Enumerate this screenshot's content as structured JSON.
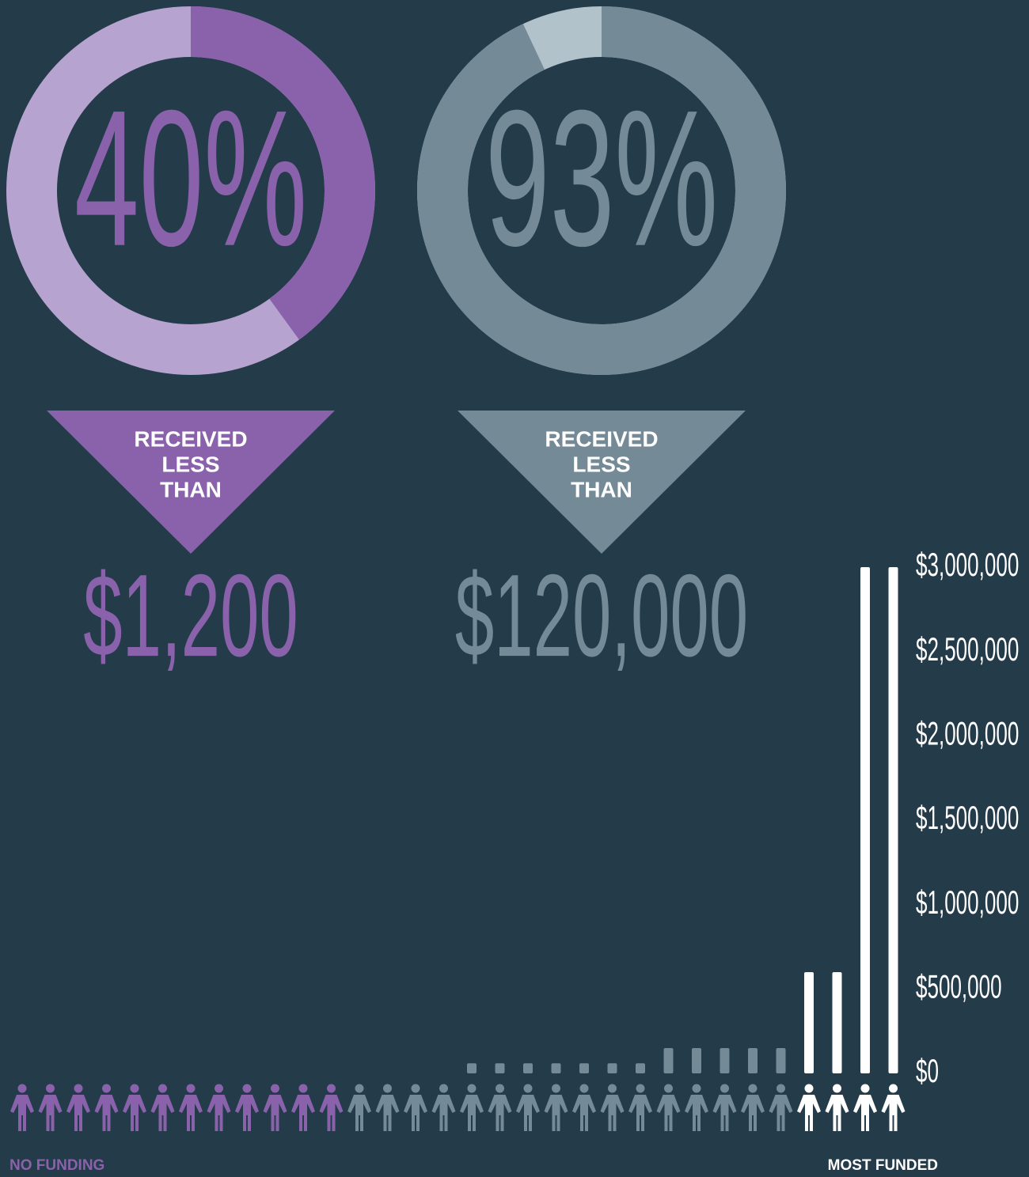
{
  "donuts": [
    {
      "value": 40,
      "value_label": "40%",
      "color": "#8a62ab",
      "track_color": "#b7a3cf",
      "caption": [
        "RECEIVED",
        "LESS",
        "THAN"
      ],
      "amount": "$1,200"
    },
    {
      "value": 93,
      "value_label": "93%",
      "color": "#748a96",
      "track_color": "#b2c2cb",
      "caption": [
        "RECEIVED",
        "LESS",
        "THAN"
      ],
      "amount": "$120,000"
    }
  ],
  "chart_data": {
    "type": "bar",
    "series": [
      {
        "color": "#8a62ab",
        "values": [
          0,
          0,
          0,
          0,
          0,
          0,
          0,
          0,
          0,
          0,
          0,
          0
        ]
      },
      {
        "color": "#748a96",
        "values": [
          0,
          0,
          0,
          0,
          60000,
          60000,
          60000,
          60000,
          60000,
          60000,
          60000,
          150000,
          150000,
          150000,
          150000,
          150000
        ]
      },
      {
        "color": "#ffffff",
        "values": [
          600000,
          600000,
          3000000,
          3000000
        ]
      }
    ],
    "ylim": [
      0,
      3000000
    ],
    "yticks": [
      {
        "value": 0,
        "label": "$0"
      },
      {
        "value": 500000,
        "label": "$500,000"
      },
      {
        "value": 1000000,
        "label": "$1,000,000"
      },
      {
        "value": 1500000,
        "label": "$1,500,000"
      },
      {
        "value": 2000000,
        "label": "$2,000,000"
      },
      {
        "value": 2500000,
        "label": "$2,500,000"
      },
      {
        "value": 3000000,
        "label": "$3,000,000"
      }
    ],
    "x_start_label": "NO FUNDING",
    "x_end_label": "MOST FUNDED"
  }
}
